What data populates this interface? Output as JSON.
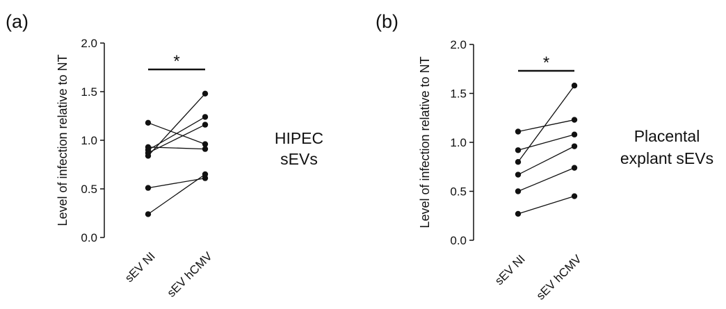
{
  "chart_data": [
    {
      "type": "scatter",
      "panel_label": "(a)",
      "ylabel": "Level of infection relative to NT",
      "categories": [
        "sEV NI",
        "sEV hCMV"
      ],
      "ylim": [
        0,
        2.0
      ],
      "yticks": [
        "0.0",
        "0.5",
        "1.0",
        "1.5",
        "2.0"
      ],
      "significance": "*",
      "side_label": [
        "HIPEC",
        "sEVs"
      ],
      "pairs": [
        [
          1.18,
          0.96
        ],
        [
          0.93,
          0.91
        ],
        [
          0.9,
          1.24
        ],
        [
          0.87,
          1.16
        ],
        [
          0.84,
          1.48
        ],
        [
          0.51,
          0.61
        ],
        [
          0.24,
          0.65
        ]
      ]
    },
    {
      "type": "scatter",
      "panel_label": "(b)",
      "ylabel": "Level of infection relative to NT",
      "categories": [
        "sEV NI",
        "sEV hCMV"
      ],
      "ylim": [
        0,
        2.0
      ],
      "yticks": [
        "0.0",
        "0.5",
        "1.0",
        "1.5",
        "2.0"
      ],
      "significance": "*",
      "side_label": [
        "Placental",
        "explant sEVs"
      ],
      "pairs": [
        [
          1.11,
          1.23
        ],
        [
          0.92,
          1.08
        ],
        [
          0.8,
          1.58
        ],
        [
          0.67,
          0.96
        ],
        [
          0.5,
          0.74
        ],
        [
          0.27,
          0.45
        ]
      ]
    }
  ]
}
